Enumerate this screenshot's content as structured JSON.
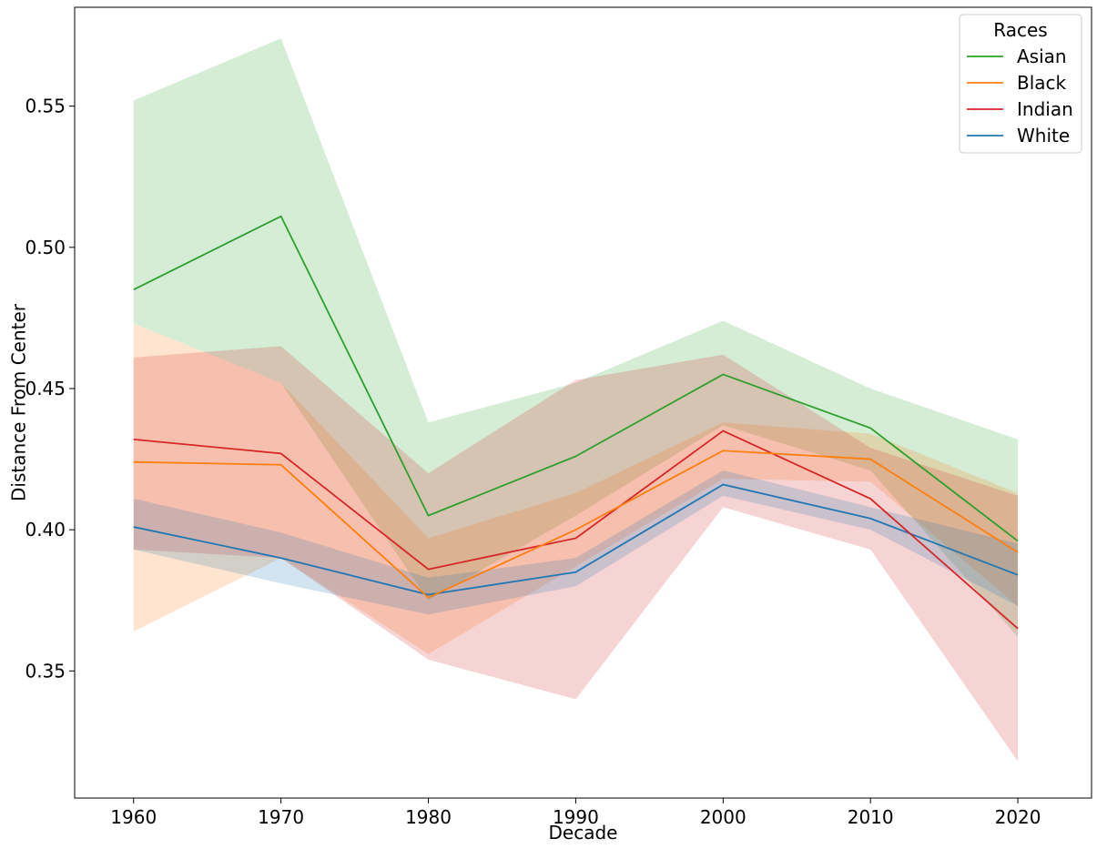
{
  "chart_data": {
    "type": "line",
    "title": "",
    "xlabel": "Decade",
    "ylabel": "Distance From Center",
    "x": [
      1960,
      1970,
      1980,
      1990,
      2000,
      2010,
      2020
    ],
    "xticks": [
      "1960",
      "1970",
      "1980",
      "1990",
      "2000",
      "2010",
      "2020"
    ],
    "yticks": [
      "0.35",
      "0.40",
      "0.45",
      "0.50",
      "0.55"
    ],
    "xlim": [
      1956,
      2025
    ],
    "ylim": [
      0.305,
      0.585
    ],
    "grid": false,
    "legend": {
      "title": "Races",
      "position": "top-right"
    },
    "series": [
      {
        "name": "Asian",
        "color": "#2ca02c",
        "values": [
          0.485,
          0.511,
          0.405,
          0.426,
          0.455,
          0.436,
          0.396
        ],
        "lower": [
          0.473,
          0.452,
          0.375,
          0.405,
          0.437,
          0.421,
          0.362
        ],
        "upper": [
          0.552,
          0.574,
          0.438,
          0.452,
          0.474,
          0.45,
          0.432
        ]
      },
      {
        "name": "Black",
        "color": "#ff7f0e",
        "values": [
          0.424,
          0.423,
          0.376,
          0.4,
          0.428,
          0.425,
          0.392
        ],
        "lower": [
          0.364,
          0.39,
          0.356,
          0.387,
          0.418,
          0.417,
          0.373
        ],
        "upper": [
          0.473,
          0.452,
          0.397,
          0.413,
          0.438,
          0.434,
          0.413
        ]
      },
      {
        "name": "Indian",
        "color": "#d62728",
        "values": [
          0.432,
          0.427,
          0.386,
          0.397,
          0.435,
          0.411,
          0.365
        ],
        "lower": [
          0.393,
          0.39,
          0.354,
          0.34,
          0.408,
          0.393,
          0.318
        ],
        "upper": [
          0.461,
          0.465,
          0.42,
          0.453,
          0.462,
          0.429,
          0.412
        ]
      },
      {
        "name": "White",
        "color": "#1f77b4",
        "values": [
          0.401,
          0.39,
          0.377,
          0.385,
          0.416,
          0.404,
          0.384
        ],
        "lower": [
          0.393,
          0.381,
          0.37,
          0.38,
          0.412,
          0.4,
          0.373
        ],
        "upper": [
          0.411,
          0.399,
          0.383,
          0.39,
          0.421,
          0.408,
          0.395
        ]
      }
    ]
  }
}
